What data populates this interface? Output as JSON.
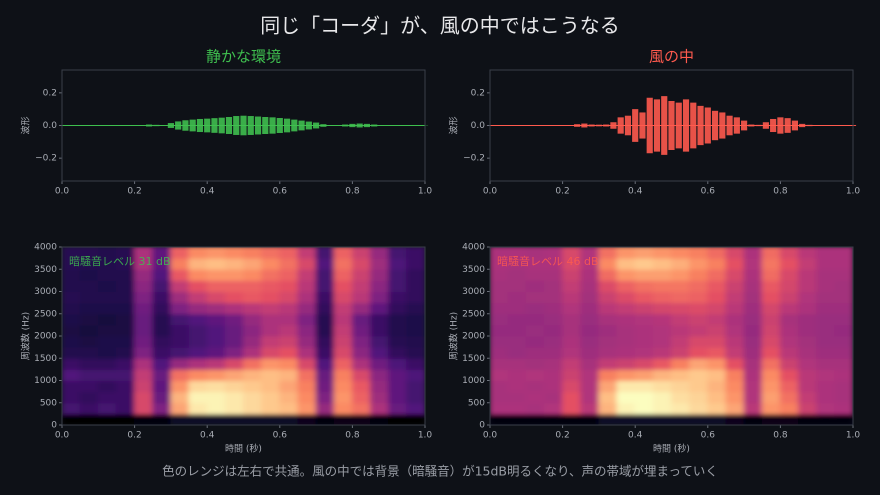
{
  "title": "同じ「コーダ」が、風の中ではこうなる",
  "caption": "色のレンジは左右で共通。風の中では背景（暗騒音）が15dB明るくなり、声の帯域が埋まっていく",
  "chart_data": [
    {
      "type": "waveform",
      "title": "静かな環境",
      "color": "#3fbf4f",
      "ylabel": "波形",
      "x": [
        0,
        0.02,
        0.04,
        0.06,
        0.08,
        0.1,
        0.12,
        0.14,
        0.16,
        0.18,
        0.2,
        0.22,
        0.24,
        0.26,
        0.28,
        0.3,
        0.32,
        0.34,
        0.36,
        0.38,
        0.4,
        0.42,
        0.44,
        0.46,
        0.48,
        0.5,
        0.52,
        0.54,
        0.56,
        0.58,
        0.6,
        0.62,
        0.64,
        0.66,
        0.68,
        0.7,
        0.72,
        0.74,
        0.76,
        0.78,
        0.8,
        0.82,
        0.84,
        0.86,
        0.88,
        0.9,
        0.92,
        0.94,
        0.96,
        0.98,
        1
      ],
      "values": [
        0.001,
        0.001,
        0.001,
        0.001,
        0.001,
        0.001,
        0.001,
        0.001,
        0.001,
        0.001,
        0.001,
        0.002,
        0.006,
        0.004,
        0.003,
        0.015,
        0.025,
        0.032,
        0.036,
        0.04,
        0.042,
        0.045,
        0.048,
        0.052,
        0.058,
        0.06,
        0.058,
        0.055,
        0.052,
        0.05,
        0.046,
        0.042,
        0.036,
        0.03,
        0.024,
        0.018,
        0.008,
        0.003,
        0.002,
        0.006,
        0.01,
        0.012,
        0.01,
        0.006,
        0.003,
        0.002,
        0.001,
        0.001,
        0.001,
        0.001,
        0.001
      ],
      "xlim": [
        0,
        1
      ],
      "xticks": [
        {
          "value": 0,
          "label": "0.0"
        },
        0.2,
        0.4,
        0.6,
        0.8,
        {
          "value": 1,
          "label": "1.0"
        }
      ],
      "ylim": [
        -0.34,
        0.34
      ],
      "yticks": [
        {
          "value": -0.2,
          "label": "−0.2"
        },
        {
          "value": 0,
          "label": "0.0"
        },
        0.2
      ]
    },
    {
      "type": "waveform",
      "title": "風の中",
      "color": "#ff5a4e",
      "ylabel": "波形",
      "x": [
        0,
        0.02,
        0.04,
        0.06,
        0.08,
        0.1,
        0.12,
        0.14,
        0.16,
        0.18,
        0.2,
        0.22,
        0.24,
        0.26,
        0.28,
        0.3,
        0.32,
        0.34,
        0.36,
        0.38,
        0.4,
        0.42,
        0.44,
        0.46,
        0.48,
        0.5,
        0.52,
        0.54,
        0.56,
        0.58,
        0.6,
        0.62,
        0.64,
        0.66,
        0.68,
        0.7,
        0.72,
        0.74,
        0.76,
        0.78,
        0.8,
        0.82,
        0.84,
        0.86,
        0.88,
        0.9,
        0.92,
        0.94,
        0.96,
        0.98,
        1
      ],
      "values": [
        0.003,
        0.003,
        0.003,
        0.003,
        0.003,
        0.003,
        0.003,
        0.003,
        0.003,
        0.003,
        0.003,
        0.003,
        0.008,
        0.012,
        0.006,
        0.005,
        0.006,
        0.02,
        0.05,
        0.06,
        0.1,
        0.08,
        0.17,
        0.16,
        0.18,
        0.15,
        0.14,
        0.16,
        0.14,
        0.12,
        0.11,
        0.09,
        0.08,
        0.06,
        0.05,
        0.03,
        0.006,
        0.004,
        0.02,
        0.04,
        0.05,
        0.045,
        0.03,
        0.01,
        0.004,
        0.003,
        0.003,
        0.003,
        0.003,
        0.003,
        0.003
      ],
      "xlim": [
        0,
        1
      ],
      "xticks": [
        {
          "value": 0,
          "label": "0.0"
        },
        0.2,
        0.4,
        0.6,
        0.8,
        {
          "value": 1,
          "label": "1.0"
        }
      ],
      "ylim": [
        -0.34,
        0.34
      ],
      "yticks": [
        {
          "value": -0.2,
          "label": "−0.2"
        },
        {
          "value": 0,
          "label": "0.0"
        },
        0.2
      ]
    },
    {
      "type": "heatmap",
      "annotation": "暗騒音レベル 31 dB",
      "annotation_color": "#3fbf4f",
      "xlabel": "時間 (秒)",
      "ylabel": "周波数 (Hz)",
      "xlim": [
        0,
        1
      ],
      "ylim": [
        0,
        4000
      ],
      "xticks": [
        {
          "value": 0,
          "label": "0.0"
        },
        0.2,
        0.4,
        0.6,
        0.8,
        {
          "value": 1,
          "label": "1.0"
        }
      ],
      "yticks": [
        0,
        500,
        1000,
        1500,
        2000,
        2500,
        3000,
        3500,
        4000
      ],
      "values": [
        [
          2,
          2,
          2,
          2,
          3,
          3,
          8,
          8,
          8,
          8,
          8,
          8,
          8,
          6,
          3,
          5,
          5,
          3,
          2,
          2
        ],
        [
          22,
          20,
          22,
          20,
          55,
          35,
          75,
          88,
          90,
          88,
          85,
          82,
          80,
          72,
          40,
          70,
          65,
          45,
          30,
          25
        ],
        [
          20,
          18,
          20,
          20,
          55,
          30,
          78,
          90,
          90,
          88,
          85,
          82,
          78,
          70,
          35,
          72,
          62,
          42,
          28,
          22
        ],
        [
          20,
          20,
          18,
          20,
          52,
          28,
          72,
          85,
          86,
          84,
          82,
          80,
          75,
          68,
          32,
          70,
          60,
          40,
          28,
          22
        ],
        [
          25,
          22,
          22,
          22,
          50,
          30,
          65,
          70,
          72,
          75,
          78,
          80,
          78,
          65,
          30,
          68,
          55,
          38,
          28,
          24
        ],
        [
          20,
          18,
          18,
          20,
          45,
          25,
          40,
          45,
          48,
          55,
          65,
          72,
          70,
          55,
          25,
          62,
          45,
          32,
          24,
          20
        ],
        [
          15,
          15,
          14,
          15,
          35,
          20,
          22,
          25,
          28,
          35,
          45,
          55,
          58,
          45,
          20,
          55,
          38,
          25,
          18,
          16
        ],
        [
          14,
          13,
          14,
          14,
          32,
          18,
          20,
          22,
          25,
          30,
          40,
          50,
          52,
          40,
          18,
          52,
          35,
          22,
          16,
          15
        ],
        [
          13,
          12,
          13,
          13,
          30,
          16,
          20,
          22,
          25,
          30,
          38,
          45,
          48,
          38,
          16,
          50,
          32,
          20,
          15,
          14
        ],
        [
          14,
          13,
          12,
          13,
          30,
          16,
          22,
          25,
          28,
          32,
          40,
          45,
          45,
          35,
          16,
          48,
          30,
          20,
          15,
          14
        ],
        [
          15,
          14,
          14,
          14,
          32,
          18,
          35,
          40,
          42,
          45,
          48,
          50,
          48,
          40,
          18,
          50,
          40,
          28,
          18,
          16
        ],
        [
          16,
          15,
          15,
          15,
          35,
          20,
          42,
          50,
          55,
          58,
          60,
          58,
          55,
          45,
          20,
          55,
          48,
          35,
          20,
          18
        ],
        [
          15,
          15,
          14,
          15,
          38,
          22,
          50,
          58,
          62,
          62,
          62,
          60,
          58,
          48,
          22,
          58,
          50,
          38,
          22,
          18
        ],
        [
          15,
          14,
          15,
          15,
          40,
          25,
          60,
          70,
          72,
          72,
          70,
          65,
          62,
          50,
          22,
          62,
          52,
          40,
          22,
          18
        ],
        [
          16,
          15,
          15,
          16,
          45,
          28,
          68,
          78,
          80,
          78,
          75,
          70,
          65,
          55,
          25,
          65,
          55,
          42,
          24,
          20
        ],
        [
          16,
          16,
          15,
          16,
          45,
          28,
          62,
          70,
          72,
          70,
          68,
          65,
          62,
          50,
          22,
          62,
          52,
          40,
          22,
          20
        ]
      ]
    },
    {
      "type": "heatmap",
      "annotation": "暗騒音レベル 46 dB",
      "annotation_color": "#ff5a4e",
      "xlabel": "時間 (秒)",
      "ylabel": "周波数 (Hz)",
      "xlim": [
        0,
        1
      ],
      "ylim": [
        0,
        4000
      ],
      "xticks": [
        {
          "value": 0,
          "label": "0.0"
        },
        0.2,
        0.4,
        0.6,
        0.8,
        {
          "value": 1,
          "label": "1.0"
        }
      ],
      "yticks": [
        0,
        500,
        1000,
        1500,
        2000,
        2500,
        3000,
        3500,
        4000
      ],
      "values": [
        [
          3,
          3,
          3,
          3,
          3,
          3,
          8,
          8,
          8,
          8,
          8,
          8,
          8,
          6,
          3,
          5,
          5,
          3,
          3,
          3
        ],
        [
          45,
          45,
          44,
          46,
          58,
          48,
          78,
          90,
          92,
          90,
          88,
          85,
          82,
          75,
          48,
          72,
          68,
          52,
          46,
          45
        ],
        [
          44,
          44,
          45,
          44,
          58,
          46,
          80,
          92,
          92,
          90,
          86,
          84,
          80,
          72,
          46,
          74,
          65,
          50,
          45,
          44
        ],
        [
          44,
          45,
          44,
          45,
          55,
          46,
          75,
          88,
          88,
          86,
          84,
          82,
          78,
          70,
          46,
          72,
          62,
          48,
          45,
          44
        ],
        [
          46,
          45,
          46,
          45,
          52,
          46,
          68,
          72,
          74,
          78,
          80,
          82,
          80,
          68,
          45,
          70,
          58,
          48,
          46,
          45
        ],
        [
          44,
          44,
          43,
          44,
          50,
          44,
          50,
          52,
          55,
          60,
          68,
          75,
          72,
          58,
          44,
          65,
          52,
          46,
          44,
          44
        ],
        [
          42,
          41,
          42,
          42,
          46,
          42,
          44,
          45,
          46,
          48,
          52,
          58,
          60,
          50,
          42,
          58,
          48,
          44,
          42,
          42
        ],
        [
          41,
          41,
          40,
          41,
          45,
          41,
          43,
          44,
          45,
          46,
          50,
          55,
          55,
          48,
          41,
          55,
          46,
          43,
          41,
          41
        ],
        [
          40,
          40,
          41,
          40,
          44,
          40,
          42,
          44,
          45,
          46,
          48,
          50,
          52,
          46,
          40,
          53,
          45,
          42,
          41,
          40
        ],
        [
          41,
          40,
          40,
          41,
          44,
          41,
          44,
          45,
          46,
          47,
          50,
          52,
          50,
          45,
          41,
          52,
          44,
          42,
          41,
          41
        ],
        [
          42,
          42,
          41,
          42,
          46,
          42,
          48,
          50,
          52,
          54,
          55,
          56,
          54,
          48,
          42,
          54,
          48,
          45,
          42,
          42
        ],
        [
          43,
          42,
          43,
          43,
          48,
          43,
          52,
          56,
          60,
          62,
          63,
          62,
          58,
          50,
          43,
          58,
          52,
          46,
          43,
          43
        ],
        [
          43,
          43,
          42,
          43,
          50,
          44,
          56,
          62,
          65,
          66,
          66,
          64,
          60,
          52,
          44,
          60,
          54,
          48,
          44,
          43
        ],
        [
          44,
          43,
          44,
          44,
          52,
          45,
          64,
          72,
          74,
          74,
          72,
          68,
          64,
          55,
          45,
          64,
          55,
          48,
          44,
          44
        ],
        [
          45,
          44,
          45,
          45,
          55,
          46,
          70,
          80,
          82,
          80,
          77,
          72,
          68,
          58,
          46,
          66,
          58,
          50,
          45,
          45
        ],
        [
          45,
          45,
          44,
          45,
          55,
          46,
          65,
          72,
          74,
          72,
          70,
          68,
          64,
          55,
          45,
          64,
          55,
          48,
          45,
          45
        ]
      ]
    }
  ]
}
